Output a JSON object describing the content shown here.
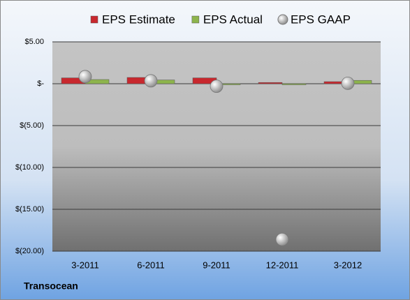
{
  "chart_data": {
    "type": "bar",
    "footer": "Transocean",
    "categories": [
      "3-2011",
      "6-2011",
      "9-2011",
      "12-2011",
      "3-2012"
    ],
    "series": [
      {
        "name": "EPS Estimate",
        "color": "#c8282e",
        "values": [
          0.7,
          0.75,
          0.7,
          0.15,
          0.25
        ]
      },
      {
        "name": "EPS Actual",
        "color": "#8db44c",
        "values": [
          0.5,
          0.45,
          -0.05,
          -0.1,
          0.4
        ]
      },
      {
        "name": "EPS GAAP",
        "color": "#a8a8a8",
        "values": [
          0.85,
          0.35,
          -0.3,
          -18.6,
          0.05
        ],
        "mark": "circle"
      }
    ],
    "ylim": [
      -20,
      5
    ],
    "yticks": [
      {
        "value": -20,
        "label": "$(20.00)"
      },
      {
        "value": -15,
        "label": "$(15.00)"
      },
      {
        "value": -10,
        "label": "$(10.00)"
      },
      {
        "value": -5,
        "label": "$(5.00)"
      },
      {
        "value": 0,
        "label": "$-"
      },
      {
        "value": 5,
        "label": "$5.00"
      }
    ],
    "grid": true,
    "legend": "top"
  }
}
